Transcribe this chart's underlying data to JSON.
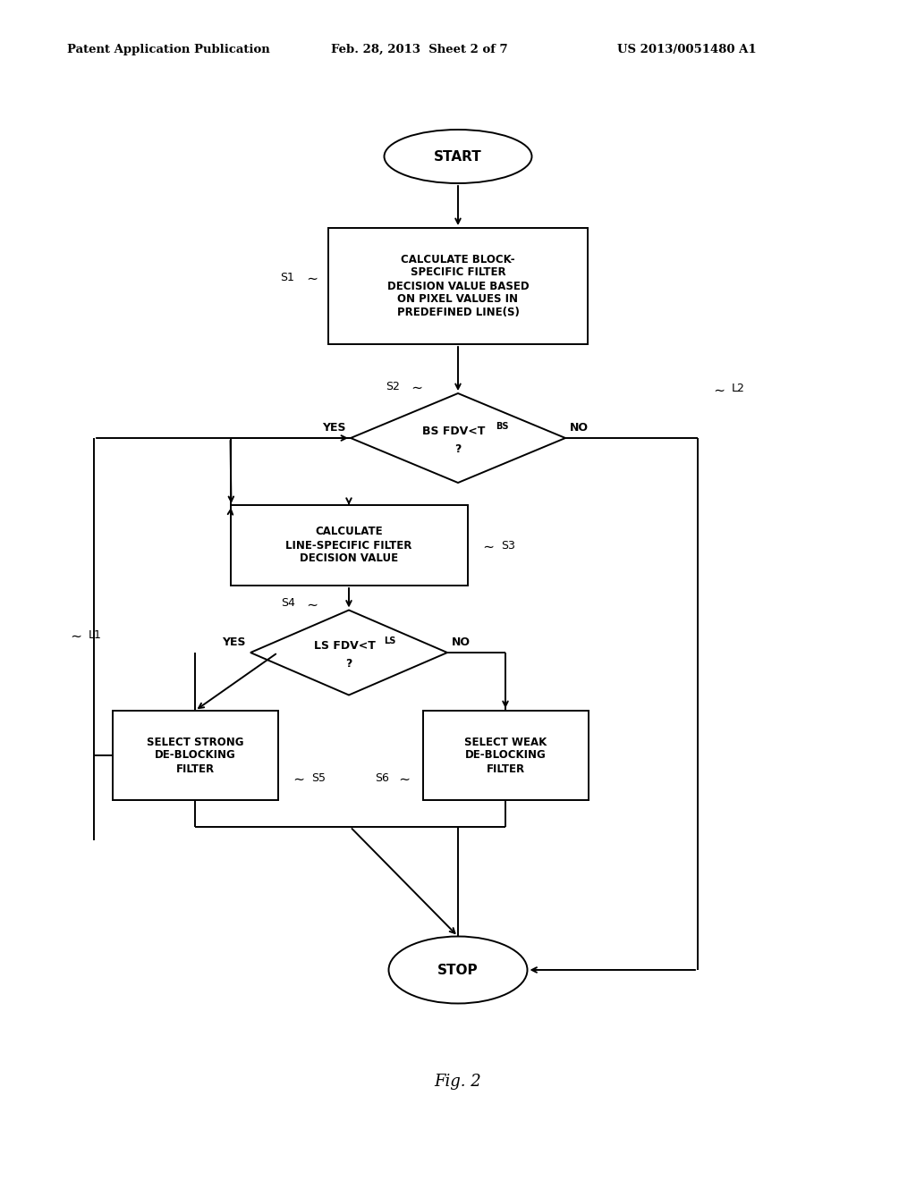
{
  "bg_color": "#ffffff",
  "line_color": "#000000",
  "header_left": "Patent Application Publication",
  "header_mid": "Feb. 28, 2013  Sheet 2 of 7",
  "header_right": "US 2013/0051480 A1",
  "fig_label": "Fig. 2",
  "start_label": "START",
  "stop_label": "STOP",
  "s1_label": "CALCULATE BLOCK-\nSPECIFIC FILTER\nDECISION VALUE BASED\nON PIXEL VALUES IN\nPREDEFINED LINE(S)",
  "s2_label": "BS FDV<T",
  "s2_sub": "BS",
  "s3_label": "CALCULATE\nLINE-SPECIFIC FILTER\nDECISION VALUE",
  "s4_label": "LS FDV<T",
  "s4_sub": "LS",
  "s5_label": "SELECT STRONG\nDE-BLOCKING\nFILTER",
  "s6_label": "SELECT WEAK\nDE-BLOCKING\nFILTER",
  "yes_label": "YES",
  "no_label": "NO",
  "lw": 1.4
}
